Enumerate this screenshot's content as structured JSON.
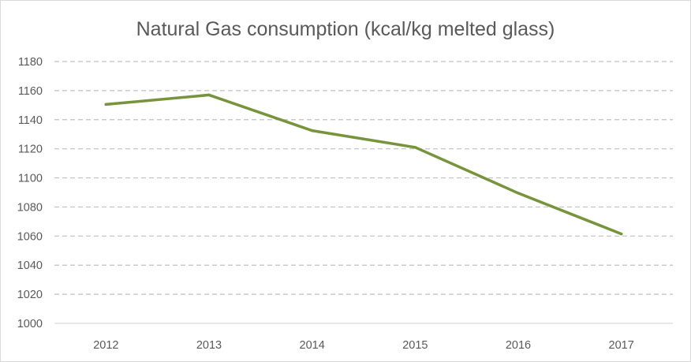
{
  "chart_data": {
    "type": "line",
    "title": "Natural Gas consumption (kcal/kg melted glass)",
    "xlabel": "",
    "ylabel": "",
    "categories": [
      "2012",
      "2013",
      "2014",
      "2015",
      "2016",
      "2017"
    ],
    "series": [
      {
        "values": [
          1150.5,
          1157,
          1132.5,
          1121,
          1089.5,
          1061.5
        ],
        "color": "#77933c"
      }
    ],
    "ylim": [
      1000,
      1180
    ],
    "yticks": [
      1000,
      1020,
      1040,
      1060,
      1080,
      1100,
      1120,
      1140,
      1160,
      1180
    ],
    "grid": true,
    "gridlines": "dashed horizontal",
    "legend": "none"
  }
}
